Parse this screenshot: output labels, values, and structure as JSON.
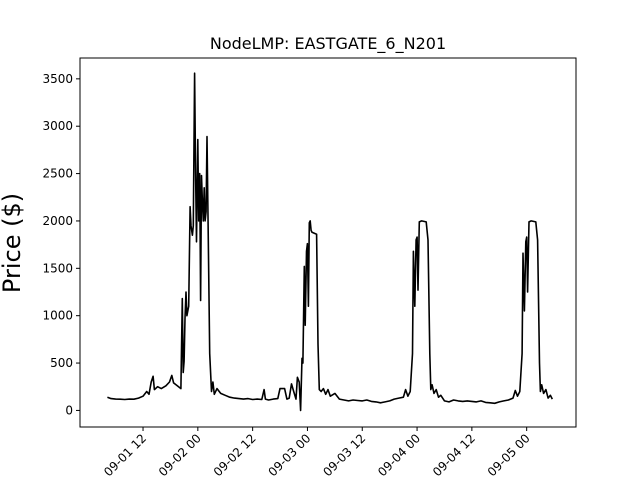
{
  "chart_data": {
    "type": "line",
    "title": "NodeLMP: EASTGATE_6_N201",
    "xlabel": "",
    "ylabel": "Price ($)",
    "grid": false,
    "legend": "none",
    "line_color": "#000000",
    "x_unit": "hours since 2018-09-01 00:00",
    "xlim": [
      -1.8,
      106.8
    ],
    "ylim": [
      -175,
      3720
    ],
    "x_ticks": [
      {
        "x": 12,
        "label": "09-01 12"
      },
      {
        "x": 24,
        "label": "09-02 00"
      },
      {
        "x": 36,
        "label": "09-02 12"
      },
      {
        "x": 48,
        "label": "09-03 00"
      },
      {
        "x": 60,
        "label": "09-03 12"
      },
      {
        "x": 72,
        "label": "09-04 00"
      },
      {
        "x": 84,
        "label": "09-04 12"
      },
      {
        "x": 96,
        "label": "09-05 00"
      }
    ],
    "y_ticks": [
      {
        "y": 0,
        "label": "0"
      },
      {
        "y": 500,
        "label": "500"
      },
      {
        "y": 1000,
        "label": "1000"
      },
      {
        "y": 1500,
        "label": "1500"
      },
      {
        "y": 2000,
        "label": "2000"
      },
      {
        "y": 2500,
        "label": "2500"
      },
      {
        "y": 3000,
        "label": "3000"
      },
      {
        "y": 3500,
        "label": "3500"
      }
    ],
    "series": [
      {
        "name": "",
        "points": [
          [
            4.2,
            140
          ],
          [
            5.0,
            125
          ],
          [
            6.0,
            120
          ],
          [
            7.0,
            118
          ],
          [
            8.0,
            115
          ],
          [
            9.0,
            120
          ],
          [
            10.0,
            118
          ],
          [
            11.0,
            130
          ],
          [
            12.0,
            150
          ],
          [
            12.8,
            200
          ],
          [
            13.3,
            170
          ],
          [
            13.8,
            300
          ],
          [
            14.2,
            360
          ],
          [
            14.5,
            220
          ],
          [
            15.2,
            250
          ],
          [
            16.0,
            230
          ],
          [
            17.0,
            260
          ],
          [
            17.8,
            300
          ],
          [
            18.3,
            370
          ],
          [
            18.7,
            290
          ],
          [
            19.5,
            260
          ],
          [
            20.3,
            230
          ],
          [
            20.6,
            1180
          ],
          [
            20.8,
            400
          ],
          [
            21.0,
            520
          ],
          [
            21.2,
            970
          ],
          [
            21.4,
            1250
          ],
          [
            21.6,
            1000
          ],
          [
            22.0,
            1100
          ],
          [
            22.3,
            2150
          ],
          [
            22.5,
            1950
          ],
          [
            22.8,
            1850
          ],
          [
            23.0,
            1950
          ],
          [
            23.3,
            3560
          ],
          [
            23.5,
            2500
          ],
          [
            23.7,
            1780
          ],
          [
            24.0,
            2860
          ],
          [
            24.2,
            2000
          ],
          [
            24.4,
            2500
          ],
          [
            24.6,
            1160
          ],
          [
            24.8,
            2480
          ],
          [
            25.0,
            2200
          ],
          [
            25.2,
            2000
          ],
          [
            25.4,
            2350
          ],
          [
            25.6,
            2000
          ],
          [
            25.8,
            2100
          ],
          [
            26.0,
            2890
          ],
          [
            26.3,
            1800
          ],
          [
            26.6,
            600
          ],
          [
            27.0,
            200
          ],
          [
            27.3,
            300
          ],
          [
            27.6,
            170
          ],
          [
            28.2,
            230
          ],
          [
            29.0,
            180
          ],
          [
            30.0,
            160
          ],
          [
            31.0,
            140
          ],
          [
            32.0,
            130
          ],
          [
            33.0,
            125
          ],
          [
            34.0,
            120
          ],
          [
            35.0,
            125
          ],
          [
            36.0,
            115
          ],
          [
            37.0,
            120
          ],
          [
            38.0,
            115
          ],
          [
            38.5,
            220
          ],
          [
            38.8,
            120
          ],
          [
            39.5,
            110
          ],
          [
            40.5,
            120
          ],
          [
            41.5,
            125
          ],
          [
            42.0,
            230
          ],
          [
            43.0,
            230
          ],
          [
            43.5,
            120
          ],
          [
            44.0,
            130
          ],
          [
            44.5,
            280
          ],
          [
            45.0,
            200
          ],
          [
            45.5,
            120
          ],
          [
            45.8,
            350
          ],
          [
            46.2,
            300
          ],
          [
            46.5,
            0
          ],
          [
            46.8,
            550
          ],
          [
            47.0,
            500
          ],
          [
            47.3,
            1520
          ],
          [
            47.5,
            900
          ],
          [
            47.8,
            1680
          ],
          [
            48.0,
            1760
          ],
          [
            48.2,
            1100
          ],
          [
            48.4,
            1980
          ],
          [
            48.6,
            2000
          ],
          [
            48.8,
            1900
          ],
          [
            49.0,
            1880
          ],
          [
            50.0,
            1860
          ],
          [
            50.3,
            700
          ],
          [
            50.6,
            220
          ],
          [
            51.0,
            200
          ],
          [
            51.5,
            230
          ],
          [
            52.0,
            170
          ],
          [
            52.5,
            220
          ],
          [
            53.0,
            150
          ],
          [
            54.0,
            180
          ],
          [
            55.0,
            120
          ],
          [
            56.0,
            110
          ],
          [
            57.0,
            100
          ],
          [
            58.0,
            110
          ],
          [
            59.0,
            105
          ],
          [
            60.0,
            100
          ],
          [
            61.0,
            110
          ],
          [
            62.0,
            95
          ],
          [
            63.0,
            90
          ],
          [
            64.0,
            80
          ],
          [
            65.0,
            90
          ],
          [
            66.0,
            100
          ],
          [
            67.0,
            120
          ],
          [
            68.0,
            130
          ],
          [
            69.0,
            140
          ],
          [
            69.5,
            220
          ],
          [
            70.0,
            150
          ],
          [
            70.5,
            200
          ],
          [
            71.0,
            600
          ],
          [
            71.2,
            1680
          ],
          [
            71.5,
            1100
          ],
          [
            71.8,
            1800
          ],
          [
            72.0,
            1830
          ],
          [
            72.2,
            1270
          ],
          [
            72.5,
            1990
          ],
          [
            73.0,
            2000
          ],
          [
            74.0,
            1990
          ],
          [
            74.4,
            1800
          ],
          [
            74.8,
            600
          ],
          [
            75.0,
            220
          ],
          [
            75.3,
            270
          ],
          [
            75.7,
            180
          ],
          [
            76.2,
            220
          ],
          [
            76.7,
            140
          ],
          [
            77.2,
            160
          ],
          [
            78.0,
            100
          ],
          [
            79.0,
            90
          ],
          [
            80.0,
            110
          ],
          [
            81.0,
            100
          ],
          [
            82.0,
            95
          ],
          [
            83.0,
            100
          ],
          [
            84.0,
            95
          ],
          [
            85.0,
            90
          ],
          [
            86.0,
            100
          ],
          [
            87.0,
            85
          ],
          [
            88.0,
            80
          ],
          [
            89.0,
            75
          ],
          [
            90.0,
            90
          ],
          [
            91.0,
            100
          ],
          [
            92.0,
            110
          ],
          [
            93.0,
            130
          ],
          [
            93.5,
            210
          ],
          [
            94.0,
            150
          ],
          [
            94.5,
            200
          ],
          [
            95.0,
            600
          ],
          [
            95.2,
            1660
          ],
          [
            95.5,
            1050
          ],
          [
            95.8,
            1780
          ],
          [
            96.0,
            1830
          ],
          [
            96.2,
            1250
          ],
          [
            96.5,
            1990
          ],
          [
            97.0,
            2000
          ],
          [
            98.0,
            1990
          ],
          [
            98.4,
            1800
          ],
          [
            98.8,
            500
          ],
          [
            99.0,
            200
          ],
          [
            99.3,
            270
          ],
          [
            99.7,
            180
          ],
          [
            100.2,
            220
          ],
          [
            100.7,
            130
          ],
          [
            101.2,
            160
          ],
          [
            101.6,
            120
          ]
        ]
      }
    ]
  }
}
